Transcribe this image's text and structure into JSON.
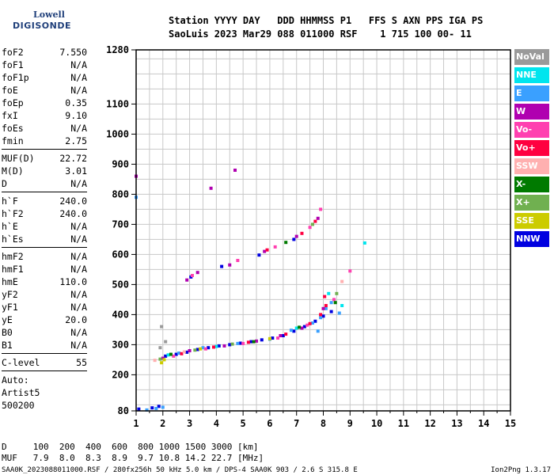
{
  "logo": {
    "line1": "Lowell",
    "line2": "DIGISONDE"
  },
  "header": {
    "line1": "Station YYYY DAY   DDD HHMMSS P1   FFS S AXN PPS IGA PS",
    "line2": "SaoLuis 2023 Mar29 088 011000 RSF    1 715 100 00- 11"
  },
  "params_group1": [
    {
      "k": "foF2",
      "v": "7.550"
    },
    {
      "k": "foF1",
      "v": "N/A"
    },
    {
      "k": "foF1p",
      "v": "N/A"
    },
    {
      "k": "foE",
      "v": "N/A"
    },
    {
      "k": "foEp",
      "v": "0.35"
    },
    {
      "k": "fxI",
      "v": "9.10"
    },
    {
      "k": "foEs",
      "v": "N/A"
    },
    {
      "k": "fmin",
      "v": "2.75"
    }
  ],
  "params_group2": [
    {
      "k": "MUF(D)",
      "v": "22.72"
    },
    {
      "k": "M(D)",
      "v": "3.01"
    },
    {
      "k": "D",
      "v": "N/A"
    }
  ],
  "params_group3": [
    {
      "k": "h`F",
      "v": "240.0"
    },
    {
      "k": "h`F2",
      "v": "240.0"
    },
    {
      "k": "h`E",
      "v": "N/A"
    },
    {
      "k": "h`Es",
      "v": "N/A"
    }
  ],
  "params_group4": [
    {
      "k": "hmF2",
      "v": "N/A"
    },
    {
      "k": "hmF1",
      "v": "N/A"
    },
    {
      "k": "hmE",
      "v": "110.0"
    },
    {
      "k": "yF2",
      "v": "N/A"
    },
    {
      "k": "yF1",
      "v": "N/A"
    },
    {
      "k": "yE",
      "v": "20.0"
    },
    {
      "k": "B0",
      "v": "N/A"
    },
    {
      "k": "B1",
      "v": "N/A"
    }
  ],
  "params_group5": [
    {
      "k": "C-level",
      "v": "55"
    }
  ],
  "auto": {
    "line1": "Auto:",
    "line2": "Artist5",
    "line3": "500200"
  },
  "legend": [
    {
      "label": "NoVal",
      "color": "#9a9a9a"
    },
    {
      "label": "NNE",
      "color": "#00e5ee"
    },
    {
      "label": "E",
      "color": "#3aa0ff"
    },
    {
      "label": "W",
      "color": "#b000b0"
    },
    {
      "label": "Vo-",
      "color": "#ff40b0"
    },
    {
      "label": "Vo+",
      "color": "#ff0040"
    },
    {
      "label": "SSW",
      "color": "#ffb0b0"
    },
    {
      "label": "X-",
      "color": "#007a00"
    },
    {
      "label": "X+",
      "color": "#70b050"
    },
    {
      "label": "SSE",
      "color": "#cccc00"
    },
    {
      "label": "NNW",
      "color": "#0000e0"
    }
  ],
  "bottom": {
    "line1": "D     100  200  400  600  800 1000 1500 3000 [km]",
    "line2": "MUF   7.9  8.0  8.3  8.9  9.7 10.8 14.2 22.7 [MHz]"
  },
  "footer": "SAA0K_2023088011000.RSF / 280fx256h 50 kHz 5.0 km / DPS-4 SAA0K 903 / 2.6 S 315.8 E",
  "version": "Ion2Png 1.3.17",
  "chart_data": {
    "type": "scatter",
    "title": "",
    "xlabel": "",
    "ylabel": "",
    "xlim": [
      1,
      15
    ],
    "ylim": [
      80,
      1280
    ],
    "xticks": [
      1,
      2,
      3,
      4,
      5,
      6,
      7,
      8,
      9,
      10,
      11,
      12,
      13,
      14,
      15
    ],
    "yticks": [
      80,
      200,
      300,
      400,
      500,
      600,
      700,
      800,
      900,
      1000,
      1100,
      1280
    ],
    "grid": true,
    "series": [
      {
        "legend": "NNW",
        "color": "#0000e0",
        "points": [
          [
            1.1,
            86
          ],
          [
            1.6,
            90
          ],
          [
            1.85,
            95
          ],
          [
            2.1,
            262
          ],
          [
            2.5,
            268
          ],
          [
            2.9,
            275
          ],
          [
            3.3,
            284
          ],
          [
            3.7,
            290
          ],
          [
            4.1,
            296
          ],
          [
            4.5,
            300
          ],
          [
            4.9,
            305
          ],
          [
            5.3,
            310
          ],
          [
            5.7,
            316
          ],
          [
            6.1,
            322
          ],
          [
            6.5,
            330
          ],
          [
            6.9,
            345
          ],
          [
            7.3,
            360
          ],
          [
            7.7,
            378
          ],
          [
            8.0,
            395
          ],
          [
            8.3,
            410
          ],
          [
            3.05,
            525
          ],
          [
            4.2,
            560
          ],
          [
            5.6,
            598
          ],
          [
            6.9,
            650
          ]
        ]
      },
      {
        "legend": "E",
        "color": "#3aa0ff",
        "points": [
          [
            1.4,
            83
          ],
          [
            1.75,
            88
          ],
          [
            2.0,
            92
          ],
          [
            2.6,
            272
          ],
          [
            3.5,
            290
          ],
          [
            4.8,
            304
          ],
          [
            6.0,
            318
          ],
          [
            6.8,
            348
          ],
          [
            7.6,
            372
          ],
          [
            7.9,
            390
          ],
          [
            8.1,
            420
          ],
          [
            8.3,
            440
          ],
          [
            8.6,
            405
          ],
          [
            7.8,
            345
          ],
          [
            1.0,
            790
          ]
        ]
      },
      {
        "legend": "NNE",
        "color": "#00e5ee",
        "points": [
          [
            2.2,
            266
          ],
          [
            4.0,
            294
          ],
          [
            7.0,
            355
          ],
          [
            8.2,
            470
          ],
          [
            8.7,
            430
          ],
          [
            9.55,
            638
          ]
        ]
      },
      {
        "legend": "W",
        "color": "#b000b0",
        "points": [
          [
            2.0,
            255
          ],
          [
            3.0,
            280
          ],
          [
            4.3,
            296
          ],
          [
            5.5,
            312
          ],
          [
            6.4,
            330
          ],
          [
            7.2,
            355
          ],
          [
            8.0,
            420
          ],
          [
            3.3,
            540
          ],
          [
            4.5,
            565
          ],
          [
            5.8,
            610
          ],
          [
            7.0,
            660
          ],
          [
            7.8,
            720
          ],
          [
            2.9,
            515
          ],
          [
            3.8,
            820
          ],
          [
            4.7,
            880
          ],
          [
            1.0,
            860
          ]
        ]
      },
      {
        "legend": "Vo-",
        "color": "#ff40b0",
        "points": [
          [
            2.4,
            262
          ],
          [
            3.6,
            286
          ],
          [
            5.0,
            304
          ],
          [
            6.3,
            322
          ],
          [
            7.4,
            365
          ],
          [
            8.4,
            450
          ],
          [
            9.0,
            545
          ],
          [
            3.1,
            530
          ],
          [
            4.8,
            580
          ],
          [
            6.2,
            625
          ],
          [
            7.5,
            690
          ],
          [
            7.9,
            750
          ]
        ]
      },
      {
        "legend": "Vo+",
        "color": "#ff0040",
        "points": [
          [
            2.7,
            270
          ],
          [
            3.9,
            292
          ],
          [
            5.2,
            308
          ],
          [
            6.6,
            335
          ],
          [
            7.5,
            370
          ],
          [
            7.9,
            400
          ],
          [
            8.1,
            430
          ],
          [
            8.05,
            460
          ],
          [
            5.9,
            615
          ],
          [
            7.2,
            670
          ],
          [
            7.7,
            710
          ]
        ]
      },
      {
        "legend": "X-",
        "color": "#007a00",
        "points": [
          [
            2.3,
            268
          ],
          [
            5.4,
            310
          ],
          [
            7.1,
            358
          ],
          [
            8.45,
            440
          ],
          [
            6.6,
            640
          ]
        ]
      },
      {
        "legend": "X+",
        "color": "#70b050",
        "points": [
          [
            1.9,
            252
          ],
          [
            3.2,
            282
          ],
          [
            4.6,
            302
          ],
          [
            8.5,
            470
          ],
          [
            7.6,
            700
          ]
        ]
      },
      {
        "legend": "SSE",
        "color": "#cccc00",
        "points": [
          [
            1.95,
            240
          ],
          [
            2.05,
            250
          ],
          [
            3.4,
            286
          ],
          [
            6.0,
            320
          ]
        ]
      },
      {
        "legend": "SSW",
        "color": "#ffb0b0",
        "points": [
          [
            1.7,
            248
          ],
          [
            2.8,
            276
          ],
          [
            8.7,
            510
          ]
        ]
      },
      {
        "legend": "NoVal",
        "color": "#9a9a9a",
        "points": [
          [
            1.9,
            290
          ],
          [
            2.1,
            310
          ],
          [
            1.95,
            360
          ]
        ]
      }
    ]
  }
}
